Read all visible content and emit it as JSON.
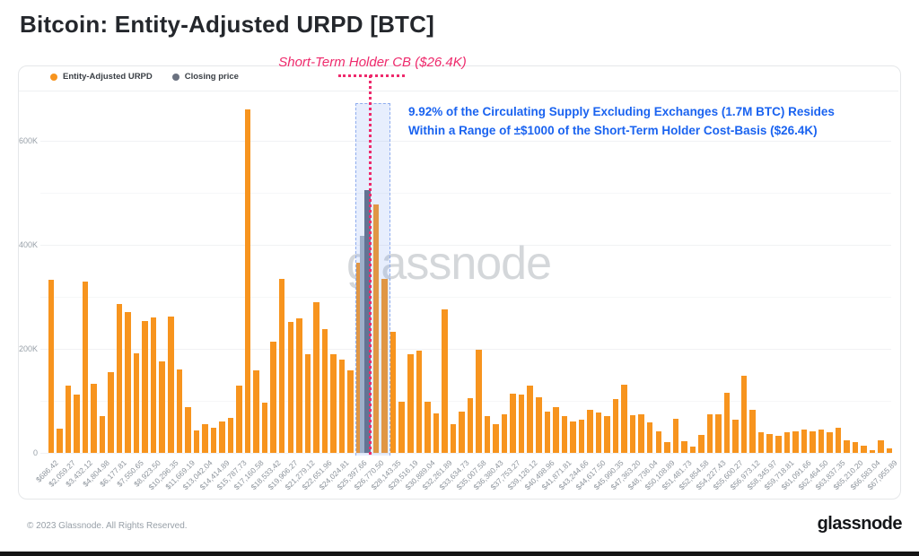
{
  "header": {
    "title": "Bitcoin: Entity-Adjusted URPD [BTC]"
  },
  "legend": [
    {
      "label": "Entity-Adjusted URPD",
      "color": "#F7941E"
    },
    {
      "label": "Closing price",
      "color": "#6B7280"
    }
  ],
  "annotations": {
    "sth_cb_label": "Short-Term Holder CB ($26.4K)",
    "supply_note_line1": "9.92% of the Circulating Supply Excluding Exchanges (1.7M BTC) Resides",
    "supply_note_line2": "Within a Range of ±$1000 of the Short-Term Holder Cost-Basis ($26.4K)"
  },
  "watermark": "glassnode",
  "footer": {
    "copyright": "© 2023 Glassnode. All Rights Reserved.",
    "logo": "glassnode"
  },
  "chart_data": {
    "type": "bar",
    "title": "Bitcoin: Entity-Adjusted URPD [BTC]",
    "xlabel": "",
    "ylabel": "",
    "ylim": [
      0,
      690000
    ],
    "grid": true,
    "legend_position": "top-left",
    "bucket_step_usd": 686.42,
    "y_ticks": [
      {
        "label": "0",
        "value": 0
      },
      {
        "label": "200K",
        "value": 200000
      },
      {
        "label": "400K",
        "value": 400000
      },
      {
        "label": "600K",
        "value": 600000
      }
    ],
    "minor_grid_values": [
      100000,
      300000,
      500000
    ],
    "x_labels": [
      "$686.42",
      "$2,059.27",
      "$3,432.12",
      "$4,804.98",
      "$6,177.81",
      "$7,550.65",
      "$8,923.50",
      "$10,296.35",
      "$11,669.19",
      "$13,042.04",
      "$14,414.89",
      "$15,787.73",
      "$17,160.58",
      "$18,533.42",
      "$19,906.27",
      "$21,279.12",
      "$22,651.96",
      "$24,024.81",
      "$25,397.66",
      "$26,770.50",
      "$28,143.35",
      "$29,516.19",
      "$30,889.04",
      "$32,261.89",
      "$33,634.73",
      "$35,007.58",
      "$36,380.43",
      "$37,753.27",
      "$39,126.12",
      "$40,498.96",
      "$41,871.81",
      "$43,244.66",
      "$44,617.50",
      "$45,990.35",
      "$47,363.20",
      "$48,736.04",
      "$50,108.89",
      "$51,481.73",
      "$52,854.58",
      "$54,227.43",
      "$55,600.27",
      "$56,973.12",
      "$58,345.97",
      "$59,718.81",
      "$61,091.66",
      "$62,464.50",
      "$63,837.35",
      "$65,210.20",
      "$66,583.04",
      "$67,955.89"
    ],
    "values": [
      332000,
      47000,
      130000,
      112000,
      330000,
      132000,
      71000,
      155000,
      287000,
      270000,
      192000,
      253000,
      261000,
      176000,
      262000,
      161000,
      88000,
      43000,
      56000,
      49000,
      61000,
      67000,
      130000,
      660000,
      158000,
      97000,
      214000,
      335000,
      251000,
      258000,
      190000,
      290000,
      238000,
      189000,
      180000,
      158000,
      366000,
      0,
      478000,
      335000,
      232000,
      98000,
      189000,
      197000,
      99000,
      76000,
      276000,
      56000,
      80000,
      105000,
      199000,
      71000,
      56000,
      75000,
      113000,
      112000,
      129000,
      107000,
      79000,
      88000,
      71000,
      61000,
      64000,
      83000,
      78000,
      71000,
      103000,
      131000,
      72000,
      75000,
      59000,
      41000,
      20000,
      66000,
      23000,
      12000,
      34000,
      75000,
      74000,
      116000,
      64000,
      148000,
      82000,
      39000,
      37000,
      33000,
      39000,
      42000,
      45000,
      42000,
      45000,
      40000,
      49000,
      25000,
      20000,
      14000,
      6000,
      25000,
      9000
    ],
    "closing_price_bar": {
      "slot": 38,
      "height_btc": 505000,
      "back_height_btc": 418000
    },
    "highlight_band": {
      "from_slot": 37,
      "to_slot": 40,
      "center_price": "$26.4K",
      "range": "±$1000"
    },
    "colors": {
      "urpd_bar": "#F7941E",
      "closing_bar": "#5E6A7E",
      "closing_bar_back": "#A7B2C0",
      "band_fill": "rgba(120,160,245,0.18)",
      "band_border": "#8fadee",
      "sth_pink": "#EE2A6C",
      "note_blue": "#1A63F0",
      "watermark": "#D4D7DA",
      "grid": "#F1F2F4",
      "axis_text": "#99A1A9"
    }
  }
}
